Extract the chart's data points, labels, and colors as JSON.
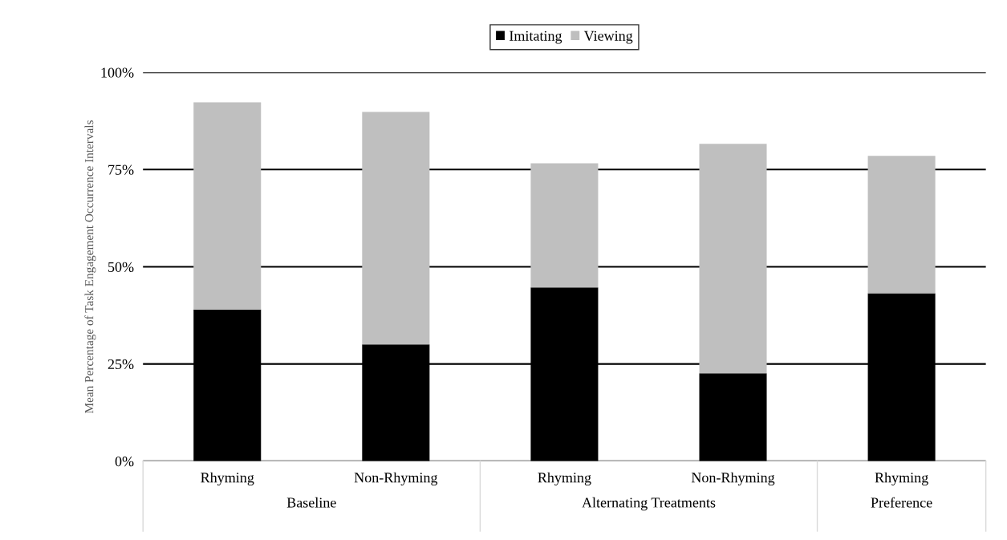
{
  "chart_data": {
    "type": "bar",
    "stacked": true,
    "ylabel": "Mean Percentage of Task Engagement Occurrence Intervals",
    "categories": [
      "Rhyming",
      "Non-Rhyming",
      "Rhyming",
      "Non-Rhyming",
      "Rhyming"
    ],
    "series": [
      {
        "name": "Imitating",
        "color": "#000000",
        "values": [
          39.0,
          30.0,
          44.7,
          22.6,
          43.2
        ]
      },
      {
        "name": "Viewing",
        "color": "#bfbfbf",
        "values": [
          53.3,
          59.8,
          31.9,
          59.0,
          35.3
        ]
      }
    ],
    "annotations": [
      "Baseline",
      "Alternating Treatments",
      "Preference"
    ],
    "ylim": [
      0,
      100
    ],
    "yticks": [
      {
        "value": 0,
        "label": "0%"
      },
      {
        "value": 25,
        "label": "25%"
      },
      {
        "value": 50,
        "label": "50%"
      },
      {
        "value": 75,
        "label": "75%"
      },
      {
        "value": 100,
        "label": "100%"
      }
    ],
    "grid": "y",
    "legend": "top"
  }
}
